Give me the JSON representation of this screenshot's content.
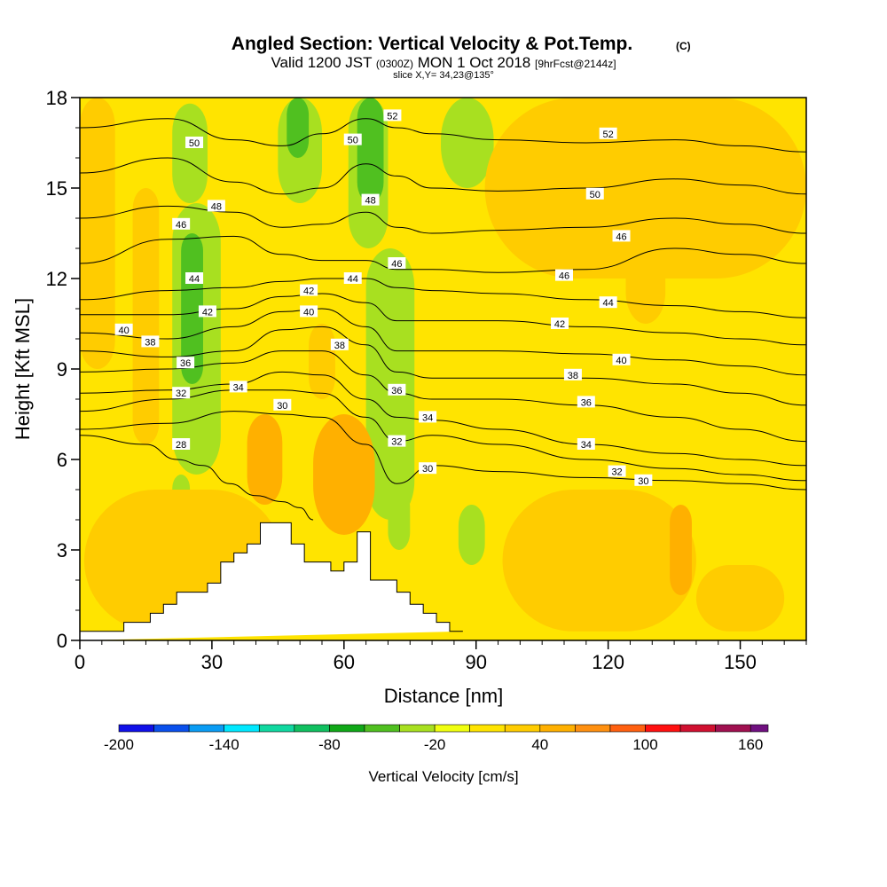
{
  "title": {
    "main": "Angled Section: Vertical Velocity & Pot.Temp.",
    "main_suffix": "(C)",
    "valid_a": "Valid 1200 JST",
    "valid_b": "(0300Z)",
    "valid_c": "MON 1 Oct 2018",
    "valid_d": "[9hrFcst@2144z]",
    "slice": "slice X,Y= 34,23@135°"
  },
  "chart_data": {
    "type": "heatmap",
    "xlabel": "Distance [nm]",
    "ylabel": "Height [Kft MSL]",
    "xlim": [
      0,
      165
    ],
    "ylim": [
      0,
      18
    ],
    "x_ticks": [
      "0",
      "30",
      "60",
      "90",
      "120",
      "150"
    ],
    "x_tick_values": [
      0,
      30,
      60,
      90,
      120,
      150
    ],
    "y_ticks": [
      "0",
      "3",
      "6",
      "9",
      "12",
      "15",
      "18"
    ],
    "y_tick_values": [
      0,
      3,
      6,
      9,
      12,
      15,
      18
    ],
    "terrain": {
      "x": [
        0,
        10,
        10,
        16,
        16,
        19,
        19,
        22,
        22,
        29,
        29,
        32,
        32,
        35,
        35,
        38,
        38,
        41,
        41,
        48,
        48,
        51,
        51,
        54,
        54,
        57,
        57,
        60,
        60,
        63,
        63,
        66,
        66,
        72,
        72,
        75,
        75,
        78,
        78,
        81,
        81,
        84,
        84,
        87,
        87,
        165
      ],
      "height": [
        0.3,
        0.3,
        0.6,
        0.6,
        0.9,
        0.9,
        1.2,
        1.2,
        1.6,
        1.6,
        1.9,
        1.9,
        2.6,
        2.6,
        2.9,
        2.9,
        3.2,
        3.2,
        3.9,
        3.9,
        3.2,
        3.2,
        2.6,
        2.6,
        2.6,
        2.6,
        2.3,
        2.3,
        2.6,
        2.6,
        3.6,
        3.6,
        2.0,
        2.0,
        1.6,
        1.6,
        1.2,
        1.2,
        0.9,
        0.9,
        0.6,
        0.6,
        0.3,
        0.3,
        0.3
      ]
    },
    "velocity_background": 15,
    "velocity_cells": [
      {
        "x0": 21,
        "x1": 29,
        "z0": 14.5,
        "z1": 17.8,
        "value": -30
      },
      {
        "x0": 21,
        "x1": 32,
        "z0": 5.5,
        "z1": 14.5,
        "value": -30
      },
      {
        "x0": 23,
        "x1": 28,
        "z0": 8.5,
        "z1": 13.5,
        "value": -50
      },
      {
        "x0": 21,
        "x1": 25,
        "z0": 3.5,
        "z1": 5.5,
        "value": -30
      },
      {
        "x0": 45,
        "x1": 55,
        "z0": 14.5,
        "z1": 18.0,
        "value": -30
      },
      {
        "x0": 47,
        "x1": 52,
        "z0": 16.0,
        "z1": 18.0,
        "value": -60
      },
      {
        "x0": 61,
        "x1": 70,
        "z0": 13.0,
        "z1": 18.0,
        "value": -30
      },
      {
        "x0": 63,
        "x1": 69,
        "z0": 14.5,
        "z1": 18.0,
        "value": -50
      },
      {
        "x0": 65,
        "x1": 76,
        "z0": 4.0,
        "z1": 13.0,
        "value": -30
      },
      {
        "x0": 70,
        "x1": 75,
        "z0": 3.0,
        "z1": 5.0,
        "value": -30
      },
      {
        "x0": 82,
        "x1": 94,
        "z0": 15.0,
        "z1": 18.0,
        "value": -30
      },
      {
        "x0": 86,
        "x1": 92,
        "z0": 2.5,
        "z1": 4.5,
        "value": -30
      },
      {
        "x0": 1,
        "x1": 46,
        "z0": 0.3,
        "z1": 5.0,
        "value": 30
      },
      {
        "x0": 38,
        "x1": 46,
        "z0": 4.5,
        "z1": 7.5,
        "value": 40
      },
      {
        "x0": 41,
        "x1": 45,
        "z0": 5.0,
        "z1": 6.5,
        "value": 50
      },
      {
        "x0": 53,
        "x1": 67,
        "z0": 3.5,
        "z1": 7.5,
        "value": 40
      },
      {
        "x0": 52,
        "x1": 58,
        "z0": 8.0,
        "z1": 10.5,
        "value": 30
      },
      {
        "x0": 54,
        "x1": 63,
        "z0": 5.0,
        "z1": 6.0,
        "value": 40
      },
      {
        "x0": 96,
        "x1": 140,
        "z0": 0.3,
        "z1": 5.0,
        "value": 30
      },
      {
        "x0": 134,
        "x1": 139,
        "z0": 1.5,
        "z1": 4.5,
        "value": 40
      },
      {
        "x0": 124,
        "x1": 133,
        "z0": 10.5,
        "z1": 14.0,
        "value": 30
      },
      {
        "x0": 92,
        "x1": 165,
        "z0": 12.0,
        "z1": 18.0,
        "value": 30
      },
      {
        "x0": 12,
        "x1": 18,
        "z0": 6.5,
        "z1": 15.0,
        "value": 30
      },
      {
        "x0": 0,
        "x1": 8,
        "z0": 9.0,
        "z1": 18.0,
        "value": 30
      },
      {
        "x0": 140,
        "x1": 160,
        "z0": 0.3,
        "z1": 2.5,
        "value": 30
      }
    ],
    "theta_contours": [
      {
        "theta": 28,
        "x": [
          0,
          15,
          22,
          28,
          34,
          40,
          46,
          50,
          53
        ],
        "height": [
          6.8,
          6.5,
          6.0,
          5.8,
          5.2,
          4.8,
          4.6,
          4.4,
          4.0
        ]
      },
      {
        "theta": 30,
        "x": [
          0,
          20,
          35,
          46,
          55,
          65,
          72,
          80,
          95,
          115,
          135,
          150,
          165
        ],
        "height": [
          7.0,
          7.2,
          7.6,
          7.5,
          7.4,
          6.5,
          5.2,
          5.8,
          5.6,
          5.4,
          5.3,
          5.2,
          5.0
        ]
      },
      {
        "theta": 32,
        "x": [
          0,
          20,
          35,
          46,
          55,
          65,
          72,
          80,
          95,
          115,
          135,
          150,
          165
        ],
        "height": [
          7.6,
          8.0,
          8.3,
          8.3,
          8.2,
          7.4,
          6.6,
          6.8,
          6.5,
          6.0,
          5.7,
          5.5,
          5.3
        ]
      },
      {
        "theta": 34,
        "x": [
          0,
          20,
          35,
          46,
          55,
          65,
          72,
          80,
          95,
          115,
          135,
          150,
          165
        ],
        "height": [
          8.2,
          8.3,
          8.5,
          8.9,
          8.8,
          8.0,
          7.4,
          7.3,
          7.0,
          6.5,
          6.2,
          6.0,
          5.8
        ]
      },
      {
        "theta": 36,
        "x": [
          0,
          20,
          35,
          46,
          55,
          65,
          72,
          80,
          95,
          115,
          135,
          150,
          165
        ],
        "height": [
          8.9,
          9.0,
          9.2,
          9.6,
          9.6,
          8.8,
          8.2,
          8.0,
          8.0,
          7.8,
          7.4,
          7.0,
          6.6
        ]
      },
      {
        "theta": 38,
        "x": [
          0,
          20,
          35,
          46,
          55,
          65,
          72,
          80,
          95,
          115,
          135,
          150,
          165
        ],
        "height": [
          9.6,
          9.4,
          9.6,
          10.3,
          10.4,
          9.8,
          8.9,
          8.7,
          8.7,
          8.7,
          8.5,
          8.2,
          7.8
        ]
      },
      {
        "theta": 40,
        "x": [
          0,
          20,
          35,
          46,
          55,
          65,
          72,
          80,
          95,
          115,
          135,
          150,
          165
        ],
        "height": [
          10.2,
          10.0,
          10.4,
          10.9,
          11.0,
          10.4,
          9.6,
          9.6,
          9.6,
          9.5,
          9.3,
          9.1,
          8.8
        ]
      },
      {
        "theta": 42,
        "x": [
          0,
          20,
          35,
          46,
          55,
          65,
          72,
          80,
          95,
          115,
          135,
          150,
          165
        ],
        "height": [
          10.8,
          10.8,
          11.0,
          11.4,
          11.5,
          11.2,
          10.6,
          10.6,
          10.6,
          10.4,
          10.2,
          10.0,
          9.8
        ]
      },
      {
        "theta": 44,
        "x": [
          0,
          20,
          35,
          46,
          55,
          65,
          72,
          80,
          95,
          115,
          135,
          150,
          165
        ],
        "height": [
          11.3,
          11.6,
          11.7,
          11.9,
          12.0,
          12.0,
          11.7,
          11.6,
          11.5,
          11.3,
          11.1,
          10.9,
          10.7
        ]
      },
      {
        "theta": 46,
        "x": [
          0,
          20,
          35,
          46,
          55,
          65,
          72,
          80,
          95,
          115,
          135,
          150,
          165
        ],
        "height": [
          12.5,
          13.3,
          13.4,
          12.8,
          12.6,
          12.6,
          12.3,
          12.3,
          12.2,
          12.3,
          13.0,
          12.8,
          12.5
        ]
      },
      {
        "theta": 48,
        "x": [
          0,
          20,
          35,
          46,
          55,
          65,
          72,
          80,
          95,
          115,
          135,
          150,
          165
        ],
        "height": [
          14.0,
          14.4,
          14.2,
          13.7,
          13.8,
          14.2,
          13.7,
          13.5,
          13.6,
          13.7,
          14.0,
          13.8,
          13.5
        ]
      },
      {
        "theta": 50,
        "x": [
          0,
          20,
          35,
          46,
          55,
          65,
          72,
          80,
          95,
          115,
          135,
          150,
          165
        ],
        "height": [
          15.5,
          16.0,
          15.2,
          14.8,
          15.0,
          15.8,
          15.4,
          15.0,
          14.9,
          15.0,
          15.3,
          15.1,
          14.8
        ]
      },
      {
        "theta": 52,
        "x": [
          0,
          20,
          35,
          46,
          55,
          65,
          72,
          80,
          95,
          115,
          135,
          150,
          165
        ],
        "height": [
          17.0,
          17.3,
          16.6,
          16.4,
          16.8,
          17.3,
          17.0,
          16.8,
          16.6,
          16.5,
          16.6,
          16.4,
          16.2
        ]
      }
    ],
    "contour_labels": [
      {
        "text": "52",
        "x": 71,
        "z": 17.4
      },
      {
        "text": "52",
        "x": 120,
        "z": 16.8
      },
      {
        "text": "50",
        "x": 26,
        "z": 16.5
      },
      {
        "text": "50",
        "x": 62,
        "z": 16.6
      },
      {
        "text": "50",
        "x": 117,
        "z": 14.8
      },
      {
        "text": "48",
        "x": 31,
        "z": 14.4
      },
      {
        "text": "48",
        "x": 66,
        "z": 14.6
      },
      {
        "text": "46",
        "x": 23,
        "z": 13.8
      },
      {
        "text": "46",
        "x": 72,
        "z": 12.5
      },
      {
        "text": "46",
        "x": 123,
        "z": 13.4
      },
      {
        "text": "46",
        "x": 110,
        "z": 12.1
      },
      {
        "text": "44",
        "x": 26,
        "z": 12.0
      },
      {
        "text": "44",
        "x": 62,
        "z": 12.0
      },
      {
        "text": "44",
        "x": 120,
        "z": 11.2
      },
      {
        "text": "42",
        "x": 29,
        "z": 10.9
      },
      {
        "text": "42",
        "x": 52,
        "z": 11.6
      },
      {
        "text": "42",
        "x": 109,
        "z": 10.5
      },
      {
        "text": "40",
        "x": 10,
        "z": 10.3
      },
      {
        "text": "40",
        "x": 52,
        "z": 10.9
      },
      {
        "text": "40",
        "x": 123,
        "z": 9.3
      },
      {
        "text": "38",
        "x": 16,
        "z": 9.9
      },
      {
        "text": "38",
        "x": 59,
        "z": 9.8
      },
      {
        "text": "38",
        "x": 112,
        "z": 8.8
      },
      {
        "text": "36",
        "x": 24,
        "z": 9.2
      },
      {
        "text": "36",
        "x": 72,
        "z": 8.3
      },
      {
        "text": "36",
        "x": 115,
        "z": 7.9
      },
      {
        "text": "34",
        "x": 36,
        "z": 8.4
      },
      {
        "text": "34",
        "x": 79,
        "z": 7.4
      },
      {
        "text": "34",
        "x": 115,
        "z": 6.5
      },
      {
        "text": "32",
        "x": 23,
        "z": 8.2
      },
      {
        "text": "32",
        "x": 72,
        "z": 6.6
      },
      {
        "text": "32",
        "x": 122,
        "z": 5.6
      },
      {
        "text": "30",
        "x": 46,
        "z": 7.8
      },
      {
        "text": "30",
        "x": 79,
        "z": 5.7
      },
      {
        "text": "30",
        "x": 128,
        "z": 5.3
      },
      {
        "text": "28",
        "x": 23,
        "z": 6.5
      }
    ],
    "colorbar": {
      "label": "Vertical Velocity [cm/s]",
      "min": -200,
      "max": 170,
      "tick_labels": [
        "-200",
        "-140",
        "-80",
        "-20",
        "40",
        "100",
        "160"
      ],
      "tick_values": [
        -200,
        -140,
        -80,
        -20,
        40,
        100,
        160
      ],
      "bins": [
        {
          "from": -200,
          "to": -180,
          "color": "#1010e8"
        },
        {
          "from": -180,
          "to": -160,
          "color": "#0a50ec"
        },
        {
          "from": -160,
          "to": -140,
          "color": "#0a9cf4"
        },
        {
          "from": -140,
          "to": -120,
          "color": "#00e8ff"
        },
        {
          "from": -120,
          "to": -100,
          "color": "#10d8a0"
        },
        {
          "from": -100,
          "to": -80,
          "color": "#10c060"
        },
        {
          "from": -80,
          "to": -60,
          "color": "#10a818"
        },
        {
          "from": -60,
          "to": -40,
          "color": "#50c020"
        },
        {
          "from": -40,
          "to": -20,
          "color": "#a8e020"
        },
        {
          "from": -20,
          "to": 0,
          "color": "#f0ff10"
        },
        {
          "from": 0,
          "to": 20,
          "color": "#ffe400"
        },
        {
          "from": 20,
          "to": 40,
          "color": "#ffcc00"
        },
        {
          "from": 40,
          "to": 60,
          "color": "#ffb000"
        },
        {
          "from": 60,
          "to": 80,
          "color": "#ff9010"
        },
        {
          "from": 80,
          "to": 100,
          "color": "#ff6010"
        },
        {
          "from": 100,
          "to": 120,
          "color": "#ff1010"
        },
        {
          "from": 120,
          "to": 140,
          "color": "#d01030"
        },
        {
          "from": 140,
          "to": 160,
          "color": "#a01050"
        },
        {
          "from": 160,
          "to": 170,
          "color": "#701080"
        }
      ]
    }
  }
}
